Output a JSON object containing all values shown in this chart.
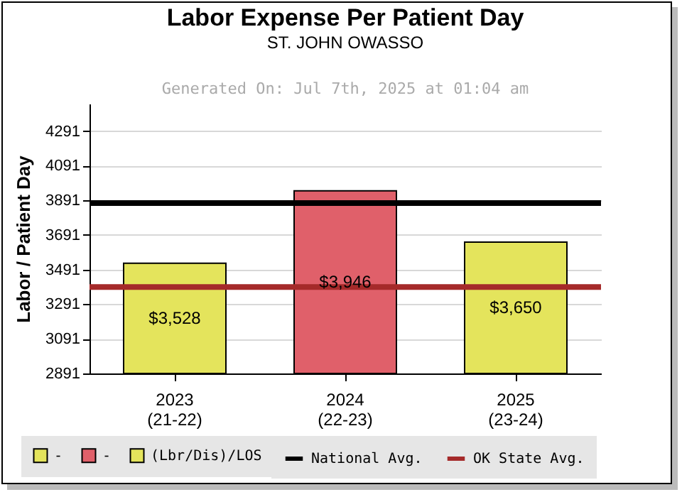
{
  "chart_data": {
    "type": "bar",
    "title": "Labor Expense Per Patient Day",
    "subtitle": "ST. JOHN OWASSO",
    "annotations": [
      "Generated On: Jul 7th, 2025 at 01:04 am"
    ],
    "ylabel": "Labor / Patient Day",
    "categories": [
      "2023\n(21-22)",
      "2024\n(22-23)",
      "2025\n(23-24)"
    ],
    "series": [
      {
        "name": "-",
        "color": "#e4e45c",
        "values": [
          3528,
          null,
          null
        ],
        "value_labels": [
          "$3,528",
          null,
          null
        ]
      },
      {
        "name": "-",
        "color": "#e0606a",
        "values": [
          null,
          3946,
          null
        ],
        "value_labels": [
          null,
          "$3,946",
          null
        ]
      },
      {
        "name": "(Lbr/Dis)/LOS",
        "color": "#e4e45c",
        "values": [
          null,
          null,
          3650
        ],
        "value_labels": [
          null,
          null,
          "$3,650"
        ]
      }
    ],
    "ylim": [
      2891,
      4449
    ],
    "yticks": [
      2891,
      3091,
      3291,
      3491,
      3691,
      3891,
      4091,
      4291
    ],
    "grid": "y",
    "legend": "bottom",
    "ref_lines": [
      {
        "axis": "y",
        "value": 3875,
        "label": "National Avg.",
        "color": "#000000"
      },
      {
        "axis": "y",
        "value": 3390,
        "label": "OK State Avg.",
        "color": "#a52a2a"
      }
    ]
  }
}
